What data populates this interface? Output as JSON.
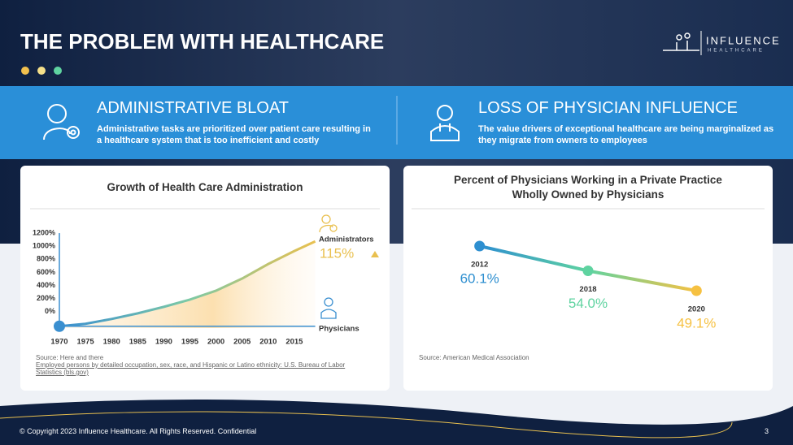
{
  "header": {
    "title": "THE PROBLEM WITH HEALTHCARE",
    "logo": {
      "name": "INFLUENCE",
      "tagline": "HEALTHCARE"
    }
  },
  "banner": [
    {
      "title": "ADMINISTRATIVE BLOAT",
      "text": "Administrative tasks are prioritized over patient care resulting in a healthcare system that is too inefficient and costly"
    },
    {
      "title": "LOSS OF PHYSICIAN INFLUENCE",
      "text": "The value drivers of exceptional healthcare are being marginalized as they migrate from owners to employees"
    }
  ],
  "chart_data": [
    {
      "type": "line",
      "title": "Growth of Health Care Administration",
      "x": [
        1970,
        1975,
        1980,
        1985,
        1990,
        1995,
        2000,
        2005,
        2010,
        2015,
        2019
      ],
      "series": [
        {
          "name": "Administrators",
          "color": "#e9c04f",
          "values": [
            -222,
            -185,
            -111,
            -25,
            74,
            185,
            321,
            506,
            728,
            926,
            1074
          ]
        },
        {
          "name": "Physicians",
          "color": "#3a8fd0",
          "values": [
            -222,
            -222,
            -222,
            -222,
            -222,
            -222,
            -222,
            -222,
            -222,
            -222,
            -222
          ]
        }
      ],
      "xlim": [
        1970,
        2020
      ],
      "xticks": [
        1970,
        1975,
        1980,
        1985,
        1990,
        1995,
        2000,
        2005,
        2010,
        2015
      ],
      "ylim": [
        -250,
        1300
      ],
      "yticks": [
        {
          "value": 0,
          "label": "0%"
        },
        {
          "value": 200,
          "label": "200%"
        },
        {
          "value": 400,
          "label": "400%"
        },
        {
          "value": 600,
          "label": "600%"
        },
        {
          "value": 800,
          "label": "800%"
        },
        {
          "value": 1000,
          "label": "1000%"
        },
        {
          "value": 1200,
          "label": "1200%"
        }
      ],
      "annotation": {
        "value": 115,
        "label": "115%"
      },
      "source": "Source: Here and there",
      "source_link": "Employed persons by detailed occupation, sex, race, and Hispanic or Latino ethnicity: U.S. Bureau of Labor Statistics (bls.gov)"
    },
    {
      "type": "point-line",
      "title": "Percent of Physicians Working in a Private Practice Wholly Owned by Physicians",
      "categories": [
        "2012",
        "2018",
        "2020"
      ],
      "values": [
        60.1,
        54.0,
        49.1
      ],
      "value_labels": [
        "60.1%",
        "54.0%",
        "49.1%"
      ],
      "colors": [
        "#2e8fd0",
        "#5fd3a0",
        "#f6c142"
      ],
      "ylim": [
        45,
        65
      ],
      "source": "Source: American Medical Association"
    }
  ],
  "footer": {
    "copyright": "© Copyright 2023 Influence Healthcare. All Rights Reserved. Confidential",
    "page": "3"
  }
}
